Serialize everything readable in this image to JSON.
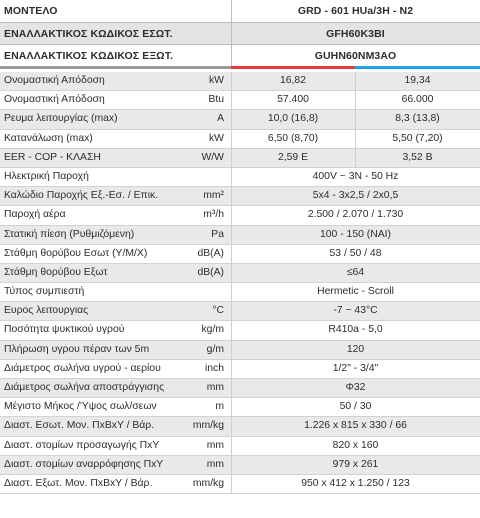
{
  "header": {
    "rows": [
      {
        "label": "ΜΟΝΤΕΛΟ",
        "value": "GRD - 601  HUa/3H - N2"
      },
      {
        "label": "ΕΝΑΛΛΑΚΤΙΚΟΣ ΚΩΔΙΚΟΣ ΕΣΩΤ.",
        "value": "GFH60K3BI"
      },
      {
        "label": "ΕΝΑΛΛΑΚΤΙΚΟΣ ΚΩΔΙΚΟΣ ΕΞΩΤ.",
        "value": "GUHN60NM3AO"
      }
    ]
  },
  "accent": {
    "grey": "#9a9a9a",
    "red": "#e43b3b",
    "blue": "#1fa2e6"
  },
  "specs": [
    {
      "label": "Ονομαστική Απόδοση",
      "unit": "kW",
      "v1": "16,82",
      "v2": "19,34"
    },
    {
      "label": "Ονομαστική Απόδοση",
      "unit": "Btu",
      "v1": "57.400",
      "v2": "66.000"
    },
    {
      "label": "Ρευμα λειτουργίας (max)",
      "unit": "A",
      "v1": "10,0 (16,8)",
      "v2": "8,3 (13,8)"
    },
    {
      "label": "Κατανάλωση (max)",
      "unit": "kW",
      "v1": "6,50 (8,70)",
      "v2": "5,50 (7,20)"
    },
    {
      "label": "EER - COP - ΚΛΑΣΗ",
      "unit": "W/W",
      "v1": "2,59 E",
      "v2": "3,52 B"
    },
    {
      "label": "Ηλεκτρική Παροχή",
      "unit": "",
      "v": "400V ~ 3N - 50 Hz"
    },
    {
      "label": "Καλώδιο Παροχής Εξ.-Εσ. / Επικ.",
      "unit": "mm²",
      "v": "5x4 - 3x2,5 / 2x0,5"
    },
    {
      "label": "Παροχή αέρα",
      "unit": "m³/h",
      "v": "2.500 / 2.070 / 1.730"
    },
    {
      "label": "Στατική πίεση (Ρυθμιζόμενη)",
      "unit": "Pa",
      "v": "100 - 150 (ΝΑΙ)"
    },
    {
      "label": "Στάθμη θορύβου Εσωτ (Υ/Μ/Χ)",
      "unit": "dB(A)",
      "v": "53 / 50 / 48"
    },
    {
      "label": "Στάθμη θορύβου Εξωτ",
      "unit": "dB(A)",
      "v": "≤64"
    },
    {
      "label": "Τύπος συμπιεστή",
      "unit": "",
      "v": "Hermetic - Scroll"
    },
    {
      "label": "Ευρος λειτουργιας",
      "unit": "°C",
      "v": "-7 ~ 43°C"
    },
    {
      "label": "Ποσότητα ψυκτικού υγρού",
      "unit": "kg/m",
      "v": "R410a - 5,0"
    },
    {
      "label": "Πλήρωση υγρου πέραν των 5m",
      "unit": "g/m",
      "v": "120"
    },
    {
      "label": "Διάμετρος σωλήνα υγρού - αερίου",
      "unit": "inch",
      "v": "1/2\" - 3/4\""
    },
    {
      "label": "Διάμετρος σωλήνα αποστράγγισης",
      "unit": "mm",
      "v": "Φ32"
    },
    {
      "label": "Μέγιστο Μήκος /Ύψος σωλ/σεων",
      "unit": "m",
      "v": "50 / 30"
    },
    {
      "label": "Διαστ. Εσωτ. Μον. ΠxΒxΥ / Βάρ.",
      "unit": "mm/kg",
      "v": "1.226 x 815 x 330 / 66"
    },
    {
      "label": "Διαστ. στομίων προσαγωγής ΠxΥ",
      "unit": "mm",
      "v": "820 x 160"
    },
    {
      "label": "Διαστ. στομίων αναρρόφησης ΠxΥ",
      "unit": "mm",
      "v": "979 x 261"
    },
    {
      "label": "Διαστ. Εξωτ. Μον. ΠxΒxΥ / Βάρ.",
      "unit": "mm/kg",
      "v": "950 x 412 x 1.250 / 123"
    }
  ]
}
